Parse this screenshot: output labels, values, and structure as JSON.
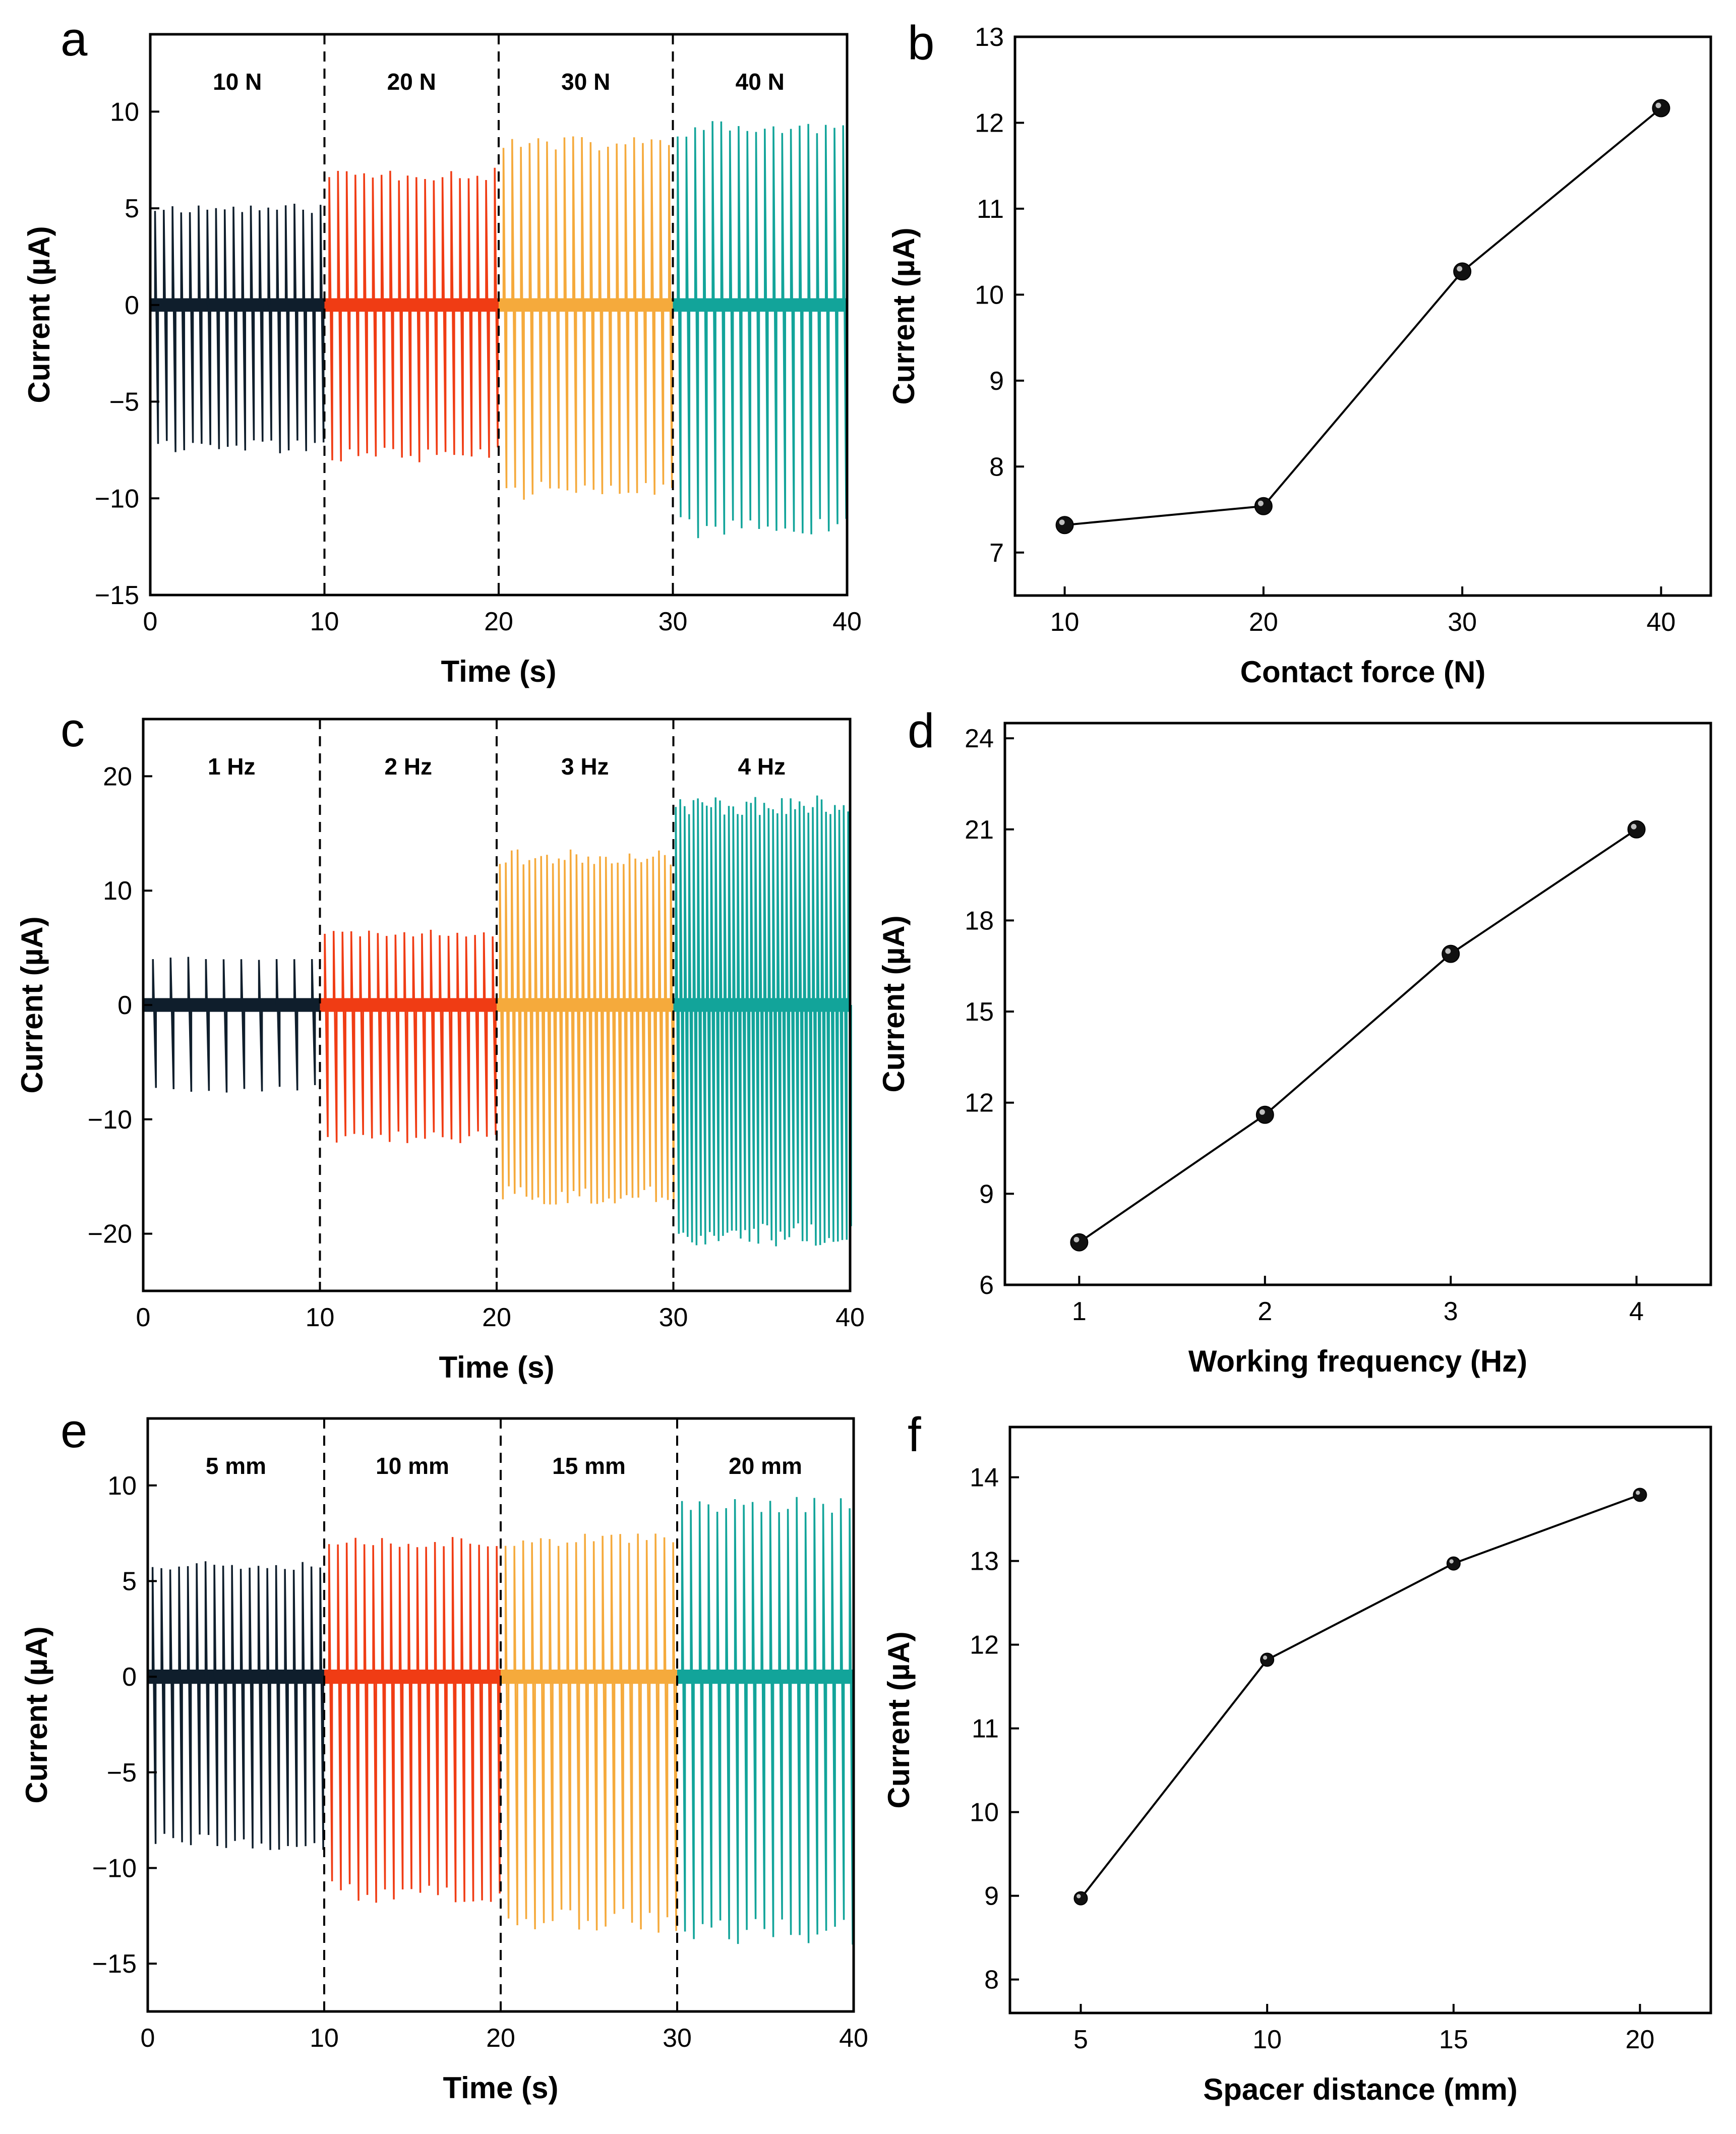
{
  "chart_data": [
    {
      "id": "a",
      "panel_letter": "a",
      "type": "line",
      "xlabel": "Time (s)",
      "ylabel": "Current (µA)",
      "xlim": [
        0,
        40
      ],
      "ylim": [
        -15,
        14
      ],
      "xticks": [
        0,
        10,
        20,
        30,
        40
      ],
      "yticks": [
        -15,
        -10,
        -5,
        0,
        5,
        10
      ],
      "tick_labels_x": [
        "0",
        "10",
        "20",
        "30",
        "40"
      ],
      "tick_labels_y": [
        "−15",
        "−10",
        "−5",
        "0",
        "5",
        "10"
      ],
      "pulses_per_segment": 20,
      "segments": [
        {
          "label": "10 N",
          "x_start": 0,
          "x_end": 10,
          "color": "#0f1e2c",
          "peak_pos": 5.1,
          "peak_neg": -7.5
        },
        {
          "label": "20 N",
          "x_start": 10,
          "x_end": 20,
          "color": "#f03c14",
          "peak_pos": 6.9,
          "peak_neg": -7.9
        },
        {
          "label": "30 N",
          "x_start": 20,
          "x_end": 30,
          "color": "#f5aa3c",
          "peak_pos": 8.5,
          "peak_neg": -9.8
        },
        {
          "label": "40 N",
          "x_start": 30,
          "x_end": 40,
          "color": "#12a49a",
          "peak_pos": 9.3,
          "peak_neg": -11.8
        }
      ]
    },
    {
      "id": "b",
      "panel_letter": "b",
      "type": "line",
      "xlabel": "Contact force (N)",
      "ylabel": "Current (µA)",
      "xlim": [
        7.5,
        42.5
      ],
      "ylim": [
        6.5,
        13
      ],
      "xticks": [
        10,
        20,
        30,
        40
      ],
      "yticks": [
        7,
        8,
        9,
        10,
        11,
        12,
        13
      ],
      "tick_labels_x": [
        "10",
        "20",
        "30",
        "40"
      ],
      "tick_labels_y": [
        "7",
        "8",
        "9",
        "10",
        "11",
        "12",
        "13"
      ],
      "x": [
        10,
        20,
        30,
        40
      ],
      "y": [
        7.32,
        7.54,
        10.27,
        12.17
      ]
    },
    {
      "id": "c",
      "panel_letter": "c",
      "type": "line",
      "xlabel": "Time (s)",
      "ylabel": "Current (µA)",
      "xlim": [
        0,
        40
      ],
      "ylim": [
        -25,
        25
      ],
      "xticks": [
        0,
        10,
        20,
        30,
        40
      ],
      "yticks": [
        -20,
        -10,
        0,
        10,
        20
      ],
      "tick_labels_x": [
        "0",
        "10",
        "20",
        "30",
        "40"
      ],
      "tick_labels_y": [
        "−20",
        "−10",
        "0",
        "10",
        "20"
      ],
      "segments": [
        {
          "label": "1 Hz",
          "x_start": 0,
          "x_end": 10,
          "color": "#0f1e2c",
          "pulses": 10,
          "peak_pos": 4.2,
          "peak_neg": -7.5
        },
        {
          "label": "2 Hz",
          "x_start": 10,
          "x_end": 20,
          "color": "#f03c14",
          "pulses": 20,
          "peak_pos": 6.4,
          "peak_neg": -11.8
        },
        {
          "label": "3 Hz",
          "x_start": 20,
          "x_end": 30,
          "color": "#f5aa3c",
          "pulses": 30,
          "peak_pos": 13.2,
          "peak_neg": -17.0
        },
        {
          "label": "4 Hz",
          "x_start": 30,
          "x_end": 40,
          "color": "#12a49a",
          "pulses": 40,
          "peak_pos": 17.8,
          "peak_neg": -20.5
        }
      ]
    },
    {
      "id": "d",
      "panel_letter": "d",
      "type": "line",
      "xlabel": "Working frequency (Hz)",
      "ylabel": "Current (µA)",
      "xlim": [
        0.6,
        4.4
      ],
      "ylim": [
        6,
        24.5
      ],
      "xticks": [
        1,
        2,
        3,
        4
      ],
      "yticks": [
        6,
        9,
        12,
        15,
        18,
        21,
        24
      ],
      "tick_labels_x": [
        "1",
        "2",
        "3",
        "4"
      ],
      "tick_labels_y": [
        "6",
        "9",
        "12",
        "15",
        "18",
        "21",
        "24"
      ],
      "x": [
        1,
        2,
        3,
        4
      ],
      "y": [
        7.4,
        11.6,
        16.9,
        21.0
      ]
    },
    {
      "id": "e",
      "panel_letter": "e",
      "type": "line",
      "xlabel": "Time (s)",
      "ylabel": "Current (µA)",
      "xlim": [
        0,
        40
      ],
      "ylim": [
        -17.5,
        13.5
      ],
      "xticks": [
        0,
        10,
        20,
        30,
        40
      ],
      "yticks": [
        -15,
        -10,
        -5,
        0,
        5,
        10
      ],
      "tick_labels_x": [
        "0",
        "10",
        "20",
        "30",
        "40"
      ],
      "tick_labels_y": [
        "−15",
        "−10",
        "−5",
        "0",
        "5",
        "10"
      ],
      "pulses_per_segment": 20,
      "segments": [
        {
          "label": "5 mm",
          "x_start": 0,
          "x_end": 10,
          "color": "#0f1e2c",
          "peak_pos": 6.0,
          "peak_neg": -8.8
        },
        {
          "label": "10 mm",
          "x_start": 10,
          "x_end": 20,
          "color": "#f03c14",
          "peak_pos": 7.2,
          "peak_neg": -11.5
        },
        {
          "label": "15 mm",
          "x_start": 20,
          "x_end": 30,
          "color": "#f5aa3c",
          "peak_pos": 7.3,
          "peak_neg": -13.0
        },
        {
          "label": "20 mm",
          "x_start": 30,
          "x_end": 40,
          "color": "#12a49a",
          "peak_pos": 9.2,
          "peak_neg": -13.6
        }
      ]
    },
    {
      "id": "f",
      "panel_letter": "f",
      "type": "line",
      "xlabel": "Spacer distance (mm)",
      "ylabel": "Current (µA)",
      "xlim": [
        3.1,
        21.9
      ],
      "ylim": [
        7.6,
        14.6
      ],
      "xticks": [
        5,
        10,
        15,
        20
      ],
      "yticks": [
        8,
        9,
        10,
        11,
        12,
        13,
        14
      ],
      "tick_labels_x": [
        "5",
        "10",
        "15",
        "20"
      ],
      "tick_labels_y": [
        "8",
        "9",
        "10",
        "11",
        "12",
        "13",
        "14"
      ],
      "x": [
        5,
        10,
        15,
        20
      ],
      "y": [
        8.97,
        11.82,
        12.97,
        13.79
      ]
    }
  ]
}
